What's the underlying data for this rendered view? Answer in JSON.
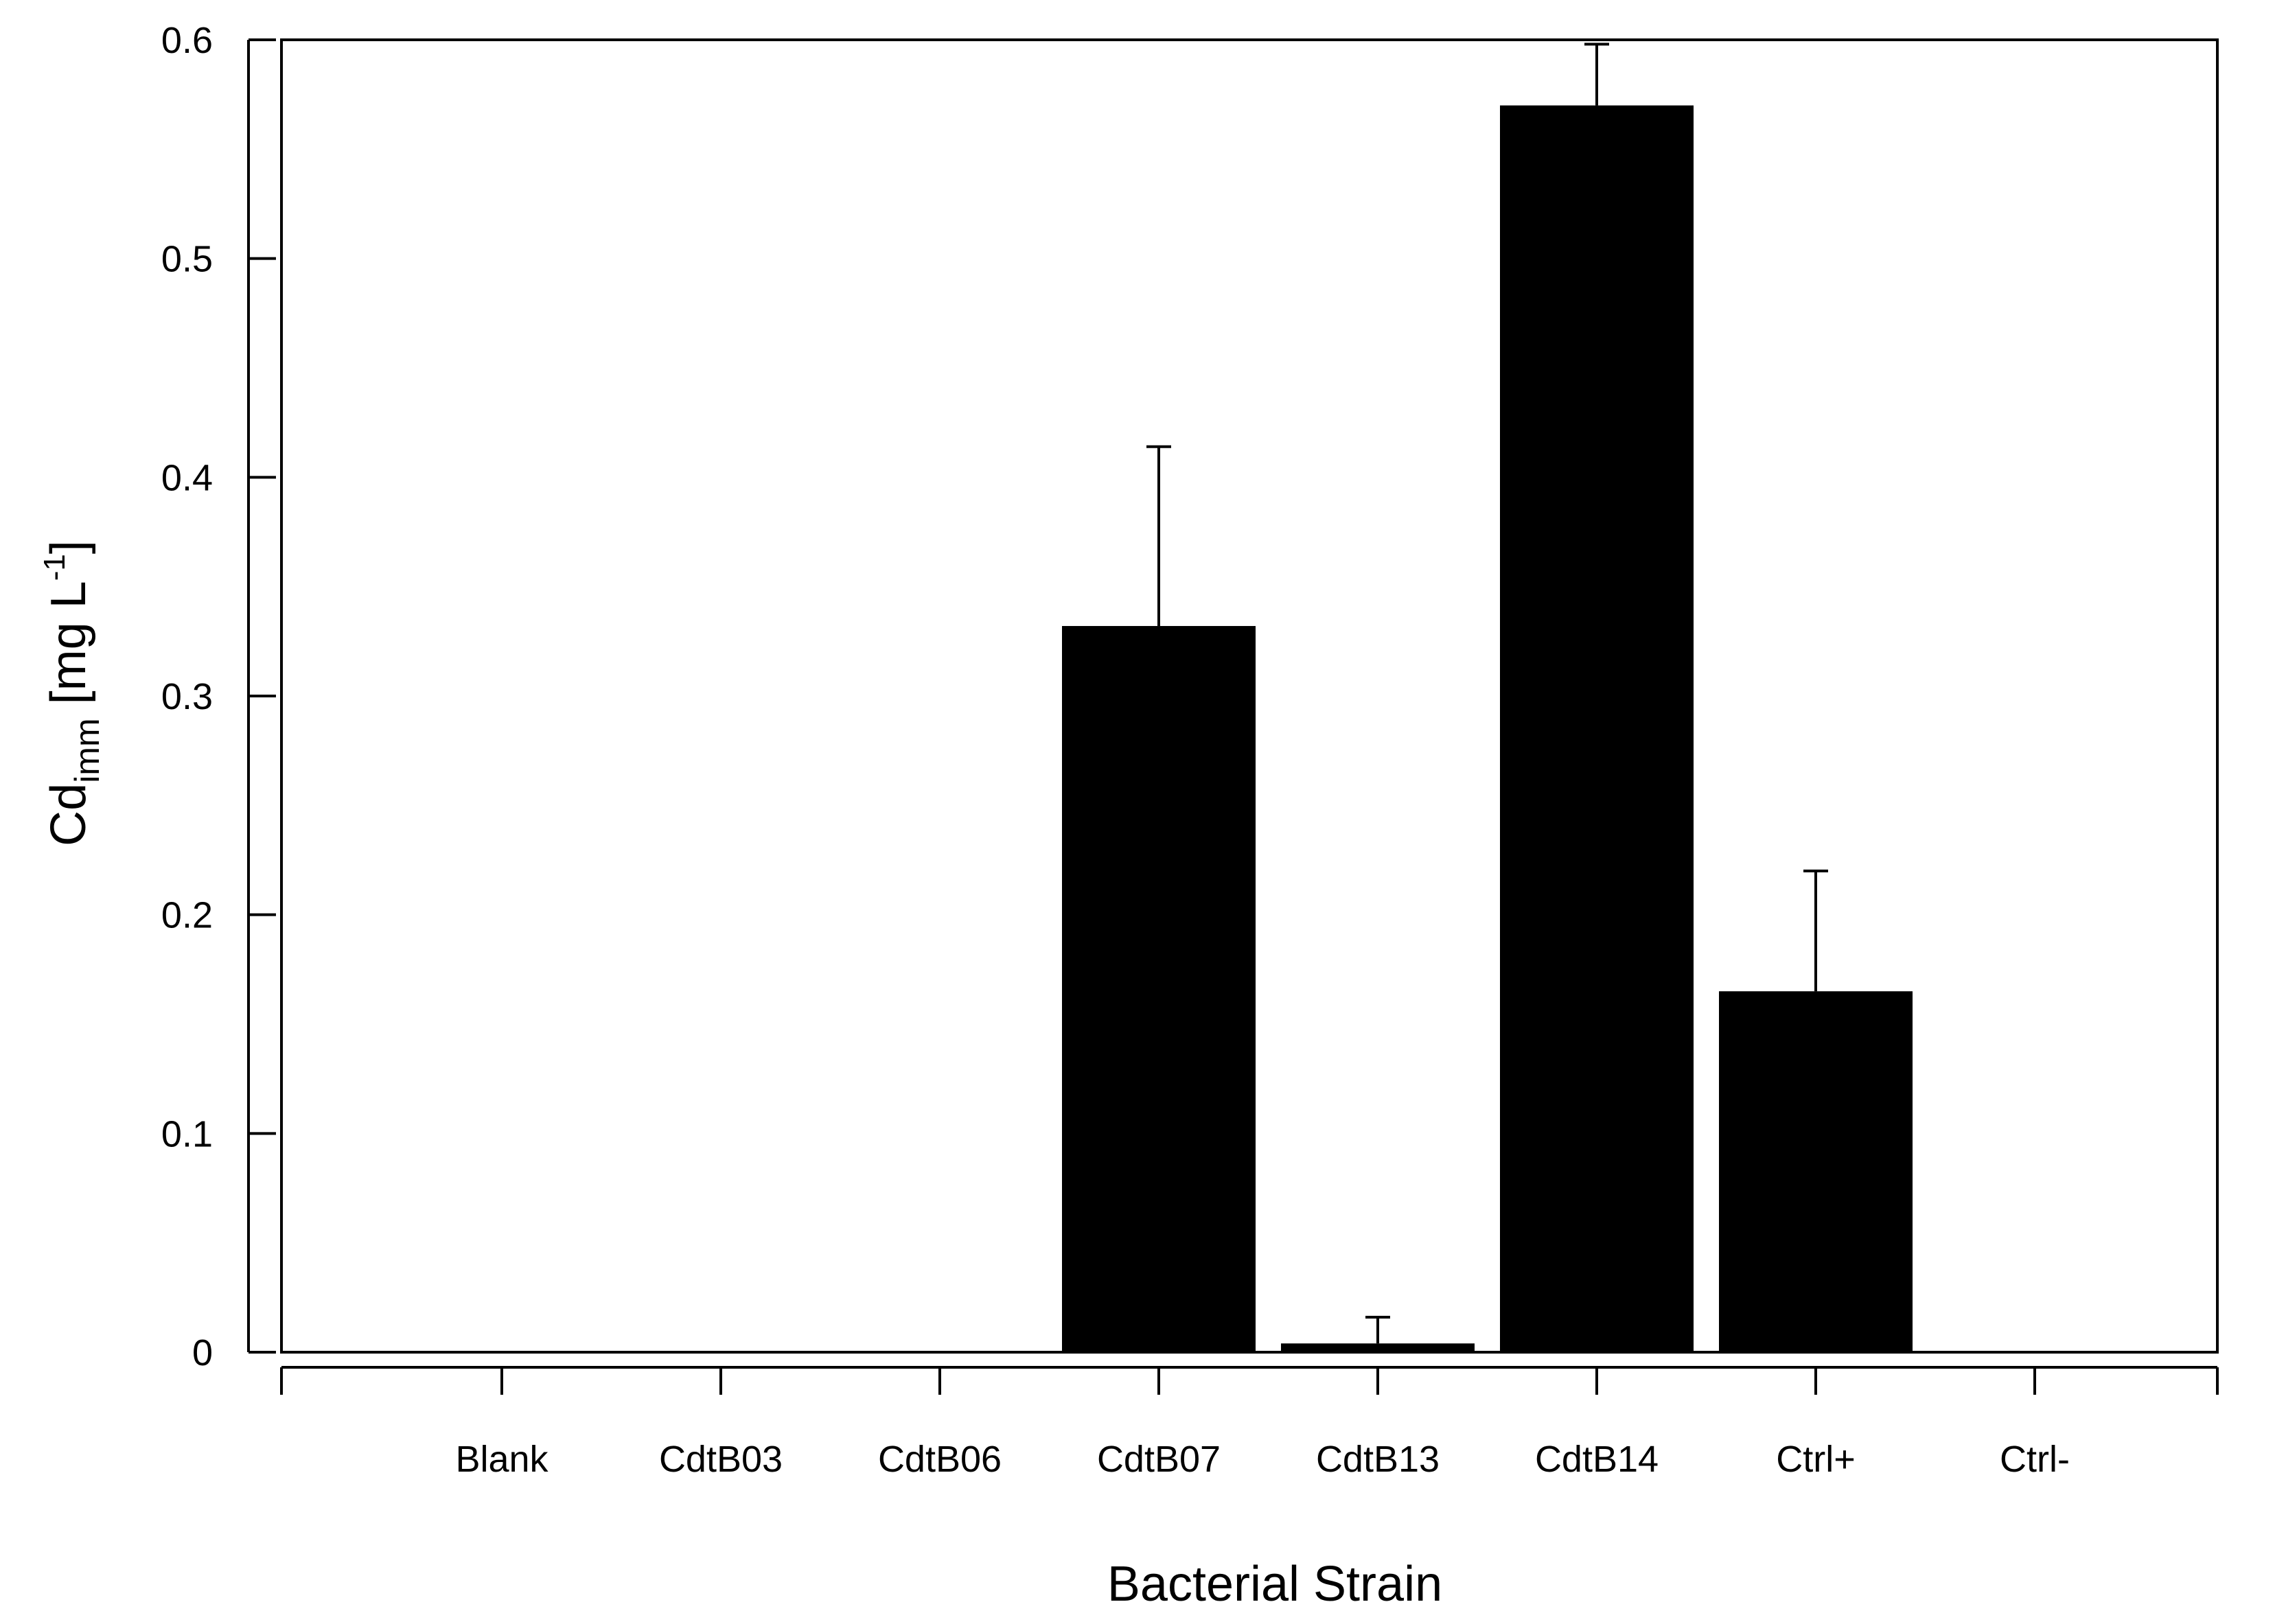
{
  "chart_data": {
    "type": "bar",
    "title": "",
    "xlabel": "Bacterial Strain",
    "ylabel": {
      "main": "Cd",
      "subscript": "imm",
      "unit_open": " [mg L",
      "superscript": "-1",
      "unit_close": "]"
    },
    "categories": [
      "Blank",
      "CdtB03",
      "CdtB06",
      "CdtB07",
      "CdtB13",
      "CdtB14",
      "Ctrl+",
      "Ctrl-"
    ],
    "values": [
      0.0,
      0.0,
      0.0,
      0.332,
      0.004,
      0.57,
      0.165,
      0.0
    ],
    "error_upper": [
      0.0,
      0.0,
      0.0,
      0.414,
      0.016,
      0.598,
      0.22,
      0.0
    ],
    "ylim": [
      0,
      0.6
    ],
    "yticks": [
      0,
      0.1,
      0.2,
      0.3,
      0.4,
      0.5,
      0.6
    ],
    "ytick_labels": [
      "0",
      "0.1",
      "0.2",
      "0.3",
      "0.4",
      "0.5",
      "0.6"
    ],
    "bar_color": "#000000",
    "grid": false,
    "legend": "none"
  }
}
